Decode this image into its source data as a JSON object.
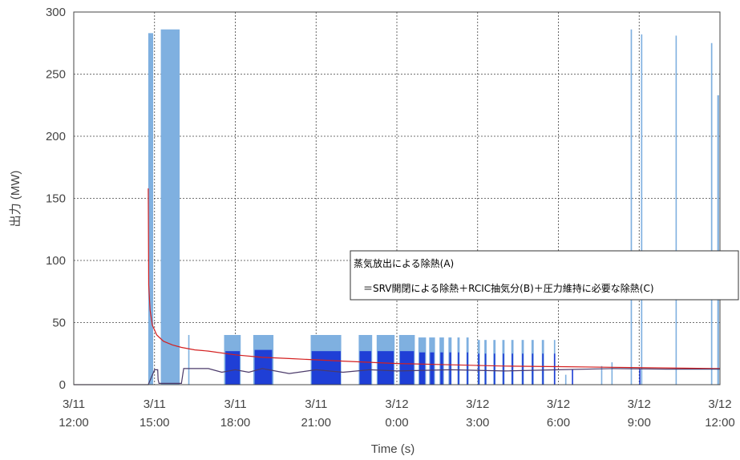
{
  "chart_data": {
    "type": "area",
    "xlabel": "Time (s)",
    "ylabel": "出力 (MW)",
    "ylim": [
      0,
      300
    ],
    "yticks": [
      0,
      50,
      100,
      150,
      200,
      250,
      300
    ],
    "xlim": [
      "3/11 12:00",
      "3/12 12:00"
    ],
    "xticks": [
      {
        "date": "3/11",
        "time": "12:00"
      },
      {
        "date": "3/11",
        "time": "15:00"
      },
      {
        "date": "3/11",
        "time": "18:00"
      },
      {
        "date": "3/11",
        "time": "21:00"
      },
      {
        "date": "3/12",
        "time": "0:00"
      },
      {
        "date": "3/12",
        "time": "3:00"
      },
      {
        "date": "3/12",
        "time": "6:00"
      },
      {
        "date": "3/12",
        "time": "9:00"
      },
      {
        "date": "3/12",
        "time": "12:00"
      }
    ],
    "grid": true,
    "legend": {
      "line1": "蒸気放出による除熱(A)",
      "line2": "＝SRV開閉による除熱＋RCIC抽気分(B)＋圧力維持に必要な除熱(C)"
    },
    "series": [
      {
        "color": "#7fb0e0",
        "kind": "pulses",
        "pulses": [
          {
            "start": "3/11 14:46",
            "end": "3/11 14:57",
            "peak": 283
          },
          {
            "start": "3/11 15:14",
            "end": "3/11 15:56",
            "peak": 286
          },
          {
            "start": "3/11 16:15",
            "end": "3/11 16:17",
            "peak": 40
          },
          {
            "start": "3/11 17:35",
            "end": "3/11 18:12",
            "peak": 40
          },
          {
            "start": "3/11 18:40",
            "end": "3/11 19:25",
            "peak": 40
          },
          {
            "start": "3/11 20:48",
            "end": "3/11 21:56",
            "peak": 40
          },
          {
            "start": "3/11 22:35",
            "end": "3/11 23:05",
            "peak": 40
          },
          {
            "start": "3/11 23:15",
            "end": "3/11 23:55",
            "peak": 40
          },
          {
            "start": "3/12 0:05",
            "end": "3/12 0:40",
            "peak": 40
          },
          {
            "start": "3/12 0:48",
            "end": "3/12 1:05",
            "peak": 38
          },
          {
            "start": "3/12 1:12",
            "end": "3/12 1:25",
            "peak": 38
          },
          {
            "start": "3/12 1:35",
            "end": "3/12 1:45",
            "peak": 38
          },
          {
            "start": "3/12 1:55",
            "end": "3/12 2:02",
            "peak": 38
          },
          {
            "start": "3/12 2:15",
            "end": "3/12 2:20",
            "peak": 38
          },
          {
            "start": "3/12 2:35",
            "end": "3/12 2:40",
            "peak": 38
          },
          {
            "start": "3/12 3:00",
            "end": "3/12 3:05",
            "peak": 36
          },
          {
            "start": "3/12 3:15",
            "end": "3/12 3:20",
            "peak": 36
          },
          {
            "start": "3/12 3:35",
            "end": "3/12 3:40",
            "peak": 36
          },
          {
            "start": "3/12 3:55",
            "end": "3/12 4:00",
            "peak": 36
          },
          {
            "start": "3/12 4:15",
            "end": "3/12 4:20",
            "peak": 36
          },
          {
            "start": "3/12 4:38",
            "end": "3/12 4:43",
            "peak": 36
          },
          {
            "start": "3/12 5:00",
            "end": "3/12 5:05",
            "peak": 36
          },
          {
            "start": "3/12 5:23",
            "end": "3/12 5:28",
            "peak": 36
          },
          {
            "start": "3/12 5:50",
            "end": "3/12 5:53",
            "peak": 36
          },
          {
            "start": "3/12 6:15",
            "end": "3/12 6:16",
            "peak": 8
          },
          {
            "start": "3/12 7:35",
            "end": "3/12 7:37",
            "peak": 15
          },
          {
            "start": "3/12 7:58",
            "end": "3/12 8:00",
            "peak": 18
          },
          {
            "start": "3/12 8:41",
            "end": "3/12 8:44",
            "peak": 286
          },
          {
            "start": "3/12 9:04",
            "end": "3/12 9:07",
            "peak": 282
          },
          {
            "start": "3/12 10:21",
            "end": "3/12 10:23",
            "peak": 281
          },
          {
            "start": "3/12 11:40",
            "end": "3/12 11:43",
            "peak": 275
          },
          {
            "start": "3/12 11:54",
            "end": "3/12 11:58",
            "peak": 233
          }
        ]
      },
      {
        "color": "#1f3fd6",
        "kind": "pulses",
        "pulses": [
          {
            "start": "3/11 17:38",
            "end": "3/11 18:10",
            "peak": 27
          },
          {
            "start": "3/11 18:43",
            "end": "3/11 19:22",
            "peak": 28
          },
          {
            "start": "3/11 20:50",
            "end": "3/11 21:55",
            "peak": 27
          },
          {
            "start": "3/11 22:37",
            "end": "3/11 23:03",
            "peak": 27
          },
          {
            "start": "3/11 23:17",
            "end": "3/11 23:53",
            "peak": 27
          },
          {
            "start": "3/12 0:07",
            "end": "3/12 0:38",
            "peak": 27
          },
          {
            "start": "3/12 0:50",
            "end": "3/12 1:03",
            "peak": 26
          },
          {
            "start": "3/12 1:14",
            "end": "3/12 1:23",
            "peak": 26
          },
          {
            "start": "3/12 1:37",
            "end": "3/12 1:43",
            "peak": 26
          },
          {
            "start": "3/12 1:57",
            "end": "3/12 2:01",
            "peak": 26
          },
          {
            "start": "3/12 2:16",
            "end": "3/12 2:19",
            "peak": 26
          },
          {
            "start": "3/12 2:36",
            "end": "3/12 2:39",
            "peak": 26
          },
          {
            "start": "3/12 3:01",
            "end": "3/12 3:04",
            "peak": 25
          },
          {
            "start": "3/12 3:16",
            "end": "3/12 3:19",
            "peak": 25
          },
          {
            "start": "3/12 3:36",
            "end": "3/12 3:39",
            "peak": 25
          },
          {
            "start": "3/12 3:56",
            "end": "3/12 3:59",
            "peak": 25
          },
          {
            "start": "3/12 4:16",
            "end": "3/12 4:19",
            "peak": 25
          },
          {
            "start": "3/12 4:39",
            "end": "3/12 4:42",
            "peak": 25
          },
          {
            "start": "3/12 5:01",
            "end": "3/12 5:04",
            "peak": 25
          },
          {
            "start": "3/12 5:24",
            "end": "3/12 5:27",
            "peak": 25
          },
          {
            "start": "3/12 5:50",
            "end": "3/12 5:53",
            "peak": 25
          },
          {
            "start": "3/12 6:30",
            "end": "3/12 6:32",
            "peak": 12
          },
          {
            "start": "3/12 9:00",
            "end": "3/12 9:02",
            "peak": 13
          }
        ]
      },
      {
        "color": "#d42020",
        "kind": "line",
        "points": [
          [
            "3/11 14:46",
            158
          ],
          [
            "3/11 14:47",
            80
          ],
          [
            "3/11 14:50",
            60
          ],
          [
            "3/11 14:55",
            48
          ],
          [
            "3/11 15:05",
            40
          ],
          [
            "3/11 15:20",
            35
          ],
          [
            "3/11 15:40",
            32
          ],
          [
            "3/11 16:00",
            30
          ],
          [
            "3/11 16:30",
            28
          ],
          [
            "3/11 17:00",
            27
          ],
          [
            "3/11 18:00",
            24
          ],
          [
            "3/11 19:00",
            22
          ],
          [
            "3/11 20:00",
            21
          ],
          [
            "3/11 21:00",
            20
          ],
          [
            "3/11 22:00",
            19
          ],
          [
            "3/11 23:00",
            18
          ],
          [
            "3/12 0:00",
            17
          ],
          [
            "3/12 2:00",
            16
          ],
          [
            "3/12 4:00",
            15
          ],
          [
            "3/12 6:00",
            14.5
          ],
          [
            "3/12 8:00",
            14
          ],
          [
            "3/12 10:00",
            13.5
          ],
          [
            "3/12 12:00",
            13
          ]
        ]
      },
      {
        "color": "#4b3a6a",
        "kind": "line",
        "points": [
          [
            "3/11 12:00",
            0
          ],
          [
            "3/11 14:46",
            0
          ],
          [
            "3/11 15:00",
            12
          ],
          [
            "3/11 15:07",
            12
          ],
          [
            "3/11 15:08",
            4
          ],
          [
            "3/11 15:10",
            1
          ],
          [
            "3/11 16:00",
            1
          ],
          [
            "3/11 16:05",
            13
          ],
          [
            "3/11 17:00",
            13
          ],
          [
            "3/11 17:30",
            10
          ],
          [
            "3/11 18:00",
            12
          ],
          [
            "3/11 18:30",
            10
          ],
          [
            "3/11 19:00",
            13
          ],
          [
            "3/11 20:00",
            9
          ],
          [
            "3/11 21:00",
            12
          ],
          [
            "3/11 22:00",
            10
          ],
          [
            "3/11 23:00",
            12
          ],
          [
            "3/12 0:00",
            11
          ],
          [
            "3/12 2:00",
            12
          ],
          [
            "3/12 4:00",
            11
          ],
          [
            "3/12 6:00",
            12
          ],
          [
            "3/12 8:00",
            13
          ],
          [
            "3/12 10:00",
            12.5
          ],
          [
            "3/12 12:00",
            12.5
          ]
        ]
      }
    ]
  }
}
